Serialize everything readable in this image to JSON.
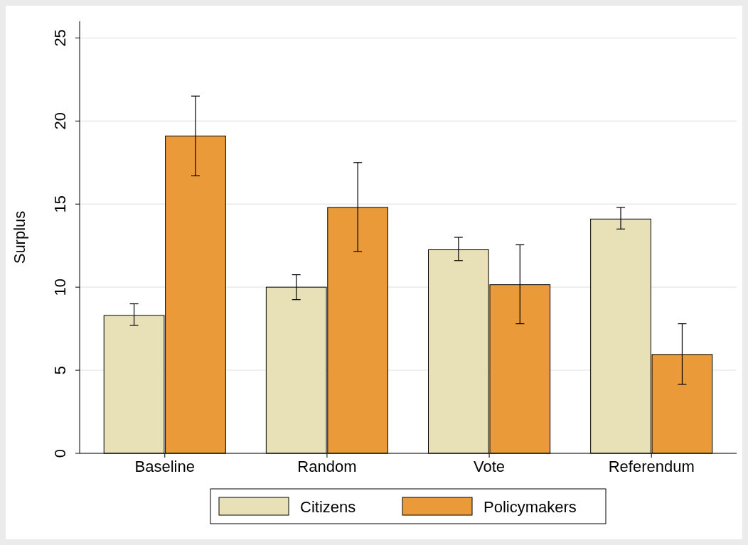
{
  "chart_data": {
    "type": "bar",
    "ylabel": "Surplus",
    "categories": [
      "Baseline",
      "Random",
      "Vote",
      "Referendum"
    ],
    "series": [
      {
        "name": "Citizens",
        "color": "#e8e1b8",
        "values": [
          8.3,
          10.0,
          12.25,
          14.1
        ],
        "errors": [
          [
            7.7,
            9.0
          ],
          [
            9.25,
            10.75
          ],
          [
            11.6,
            13.0
          ],
          [
            13.5,
            14.8
          ]
        ]
      },
      {
        "name": "Policymakers",
        "color": "#ea9a38",
        "values": [
          19.1,
          14.8,
          10.15,
          5.95
        ],
        "errors": [
          [
            16.7,
            21.5
          ],
          [
            12.15,
            17.5
          ],
          [
            7.8,
            12.55
          ],
          [
            4.15,
            7.8
          ]
        ]
      }
    ],
    "ylim": [
      0,
      26
    ],
    "yticks": [
      0,
      5,
      10,
      15,
      20,
      25
    ],
    "grid": "y",
    "legend": "bottom"
  }
}
